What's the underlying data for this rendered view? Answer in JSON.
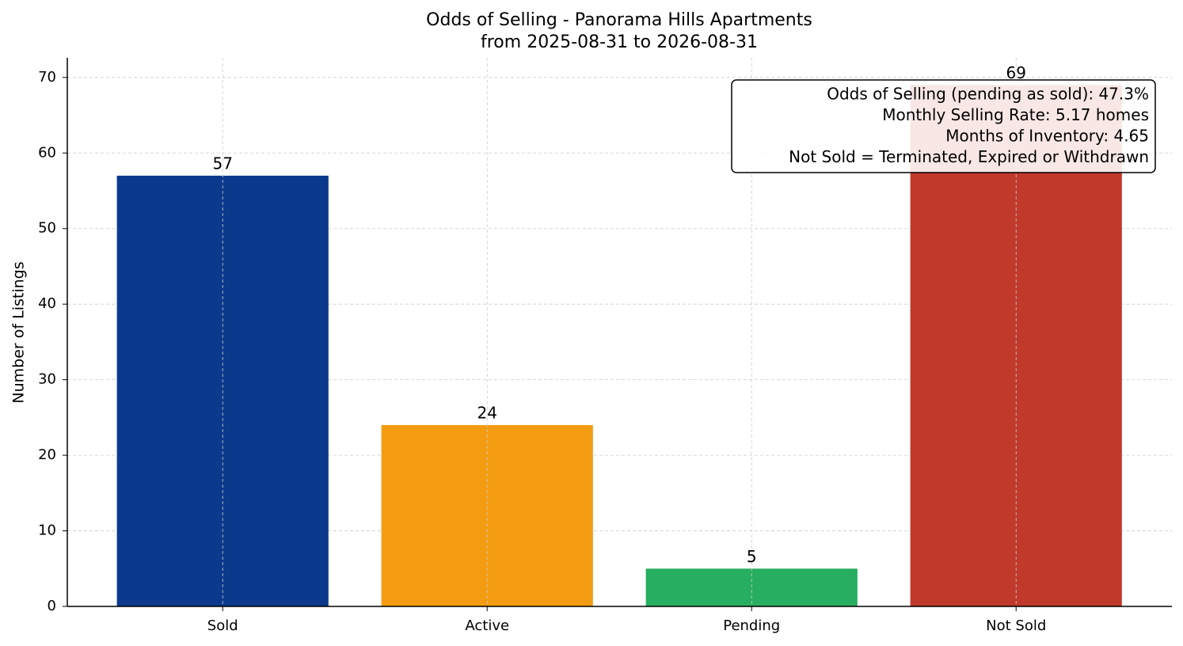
{
  "chart_data": {
    "type": "bar",
    "title": "Odds of Selling - Panorama Hills Apartments",
    "subtitle": "from 2025-08-31 to 2026-08-31",
    "y_label": "Number of Listings",
    "categories": [
      "Sold",
      "Active",
      "Pending",
      "Not Sold"
    ],
    "values": [
      57,
      24,
      5,
      69
    ],
    "colors": [
      "#0b3a8c",
      "#f39c12",
      "#27ae60",
      "#c0392b"
    ],
    "ylim": [
      0,
      72.6
    ],
    "yticks": [
      0,
      10,
      20,
      30,
      40,
      50,
      60,
      70
    ],
    "grid": true,
    "annotation": [
      "Odds of Selling (pending as sold): 47.3%",
      "Monthly Selling Rate: 5.17 homes",
      "Months of Inventory: 4.65",
      "Not Sold = Terminated, Expired or Withdrawn"
    ]
  }
}
